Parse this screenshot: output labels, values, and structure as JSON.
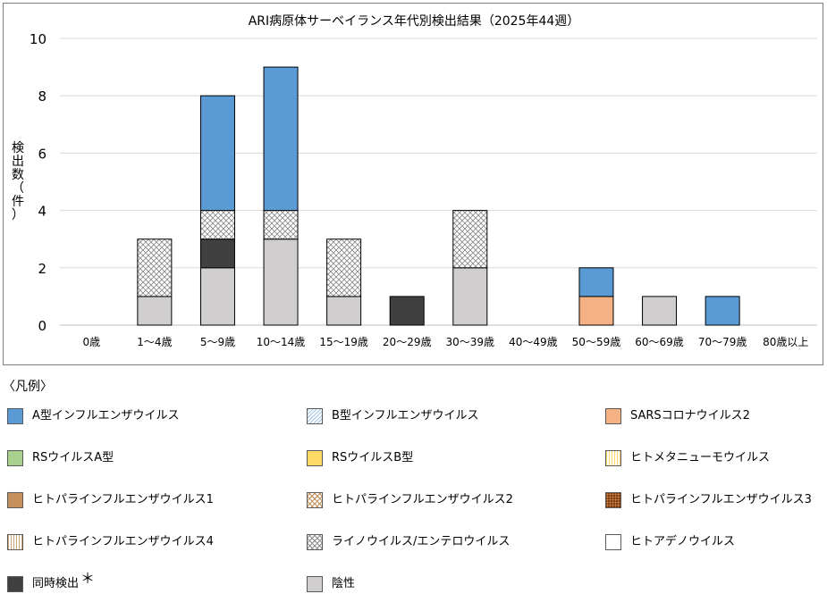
{
  "chart_data": {
    "type": "bar",
    "stacked": true,
    "title": "ARI病原体サーベイランス年代別検出結果（2025年44週）",
    "ylabel": "検出数（件）",
    "xlabel": "",
    "ylim": [
      0,
      10
    ],
    "yticks": [
      0,
      2,
      4,
      6,
      8,
      10
    ],
    "grid": true,
    "categories": [
      "0歳",
      "1～4歳",
      "5～9歳",
      "10～14歳",
      "15～19歳",
      "20～29歳",
      "30～39歳",
      "40～49歳",
      "50～59歳",
      "60～69歳",
      "70～79歳",
      "80歳以上"
    ],
    "series": [
      {
        "name": "陰性",
        "fill": "solid",
        "color": "#d0cece",
        "values": [
          0,
          1,
          2,
          3,
          1,
          0,
          2,
          0,
          0,
          1,
          0,
          0
        ]
      },
      {
        "name": "SARSコロナウイルス2",
        "fill": "solid",
        "color": "#f4b183",
        "values": [
          0,
          0,
          0,
          0,
          0,
          0,
          0,
          0,
          1,
          0,
          0,
          0
        ]
      },
      {
        "name": "同時検出",
        "fill": "solid",
        "color": "#404040",
        "values": [
          0,
          0,
          1,
          0,
          0,
          1,
          0,
          0,
          0,
          0,
          0,
          0
        ]
      },
      {
        "name": "ライノウイルス/エンテロウイルス",
        "fill": "pattern-check",
        "color": "#bfbfbf",
        "values": [
          0,
          2,
          1,
          1,
          2,
          0,
          2,
          0,
          0,
          0,
          0,
          0
        ]
      },
      {
        "name": "A型インフルエンザウイルス",
        "fill": "solid",
        "color": "#5b9bd5",
        "values": [
          0,
          0,
          4,
          5,
          0,
          0,
          0,
          0,
          1,
          0,
          1,
          0
        ]
      }
    ]
  },
  "legend": {
    "title": "〈凡例〉",
    "note_mark": "＊",
    "items": [
      {
        "label": "A型インフルエンザウイルス",
        "fill": "solid",
        "color": "#5b9bd5"
      },
      {
        "label": "B型インフルエンザウイルス",
        "fill": "pattern-dots",
        "color": "#9dc3e6"
      },
      {
        "label": "SARSコロナウイルス2",
        "fill": "solid",
        "color": "#f4b183"
      },
      {
        "label": "RSウイルスA型",
        "fill": "solid",
        "color": "#a9d18e"
      },
      {
        "label": "RSウイルスB型",
        "fill": "solid",
        "color": "#ffd966"
      },
      {
        "label": "ヒトメタニューモウイルス",
        "fill": "pattern-vlines",
        "color": "#ffd966"
      },
      {
        "label": "ヒトパラインフルエンザウイルス1",
        "fill": "solid",
        "color": "#c5905b"
      },
      {
        "label": "ヒトパラインフルエンザウイルス2",
        "fill": "pattern-checkorange",
        "color": "#c5905b"
      },
      {
        "label": "ヒトパラインフルエンザウイルス3",
        "fill": "pattern-brown",
        "color": "#843c0c"
      },
      {
        "label": "ヒトパラインフルエンザウイルス4",
        "fill": "pattern-vlines",
        "color": "#c5905b"
      },
      {
        "label": "ライノウイルス/エンテロウイルス",
        "fill": "pattern-check",
        "color": "#bfbfbf"
      },
      {
        "label": "ヒトアデノウイルス",
        "fill": "solid",
        "color": "#ffffff"
      },
      {
        "label": "同時検出",
        "fill": "solid",
        "color": "#404040"
      },
      {
        "label": "陰性",
        "fill": "solid",
        "color": "#d0cece"
      }
    ]
  }
}
